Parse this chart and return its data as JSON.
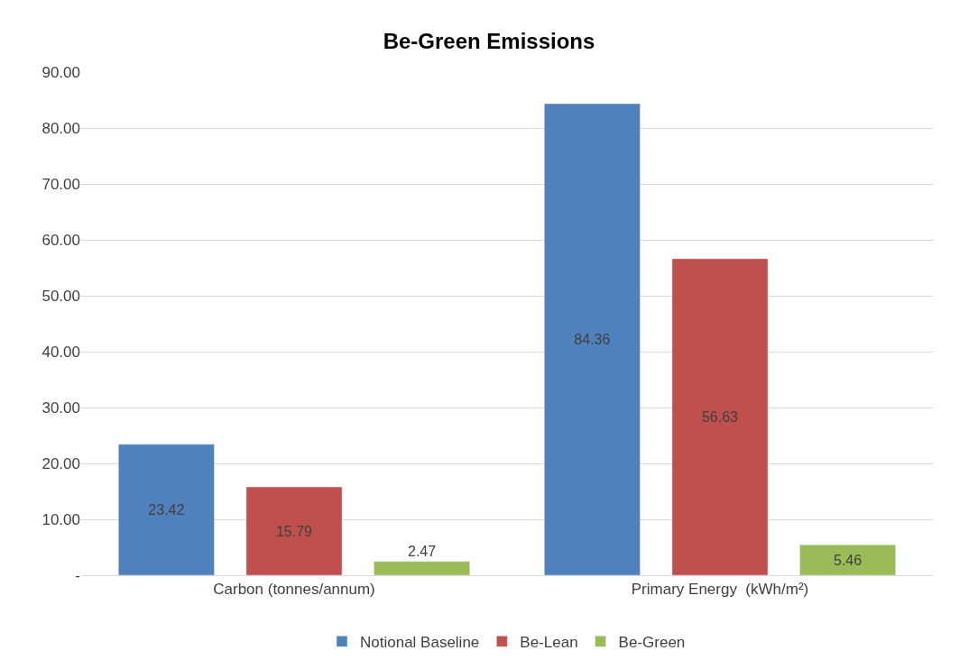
{
  "chart_data": {
    "type": "bar",
    "title": "Be-Green Emissions",
    "categories": [
      "Carbon (tonnes/annum)",
      "Primary Energy  (kWh/m²)"
    ],
    "series": [
      {
        "name": "Notional Baseline",
        "color": "#4f81bd",
        "values": [
          23.42,
          84.36
        ]
      },
      {
        "name": "Be-Lean",
        "color": "#c0504d",
        "values": [
          15.79,
          56.63
        ]
      },
      {
        "name": "Be-Green",
        "color": "#9bbb59",
        "values": [
          2.47,
          5.46
        ]
      }
    ],
    "ylim": [
      0,
      90
    ],
    "yticks": [
      {
        "value": 0,
        "label": "-"
      },
      {
        "value": 10,
        "label": "10.00"
      },
      {
        "value": 20,
        "label": "20.00"
      },
      {
        "value": 30,
        "label": "30.00"
      },
      {
        "value": 40,
        "label": "40.00"
      },
      {
        "value": 50,
        "label": "50.00"
      },
      {
        "value": 60,
        "label": "60.00"
      },
      {
        "value": 70,
        "label": "70.00"
      },
      {
        "value": 80,
        "label": "80.00"
      },
      {
        "value": 90,
        "label": "90.00"
      }
    ],
    "grid": "y",
    "legend": "bottom",
    "data_labels": true
  }
}
